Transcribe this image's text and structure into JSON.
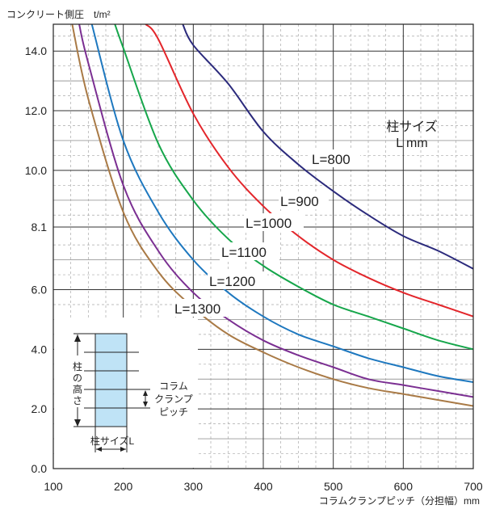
{
  "chart_data": {
    "type": "line",
    "ylabel": "コンクリート側圧　t/m²",
    "xlabel": "コラムクランプピッチ（分担幅）mm",
    "xlim": [
      100,
      700
    ],
    "ylim": [
      0,
      14.9
    ],
    "xticks": [
      100,
      200,
      300,
      400,
      500,
      600,
      700
    ],
    "xtick_labels": [
      "100",
      "200",
      "300",
      "400",
      "500",
      "600",
      "700"
    ],
    "yticks": [
      0,
      2,
      4,
      6,
      8.1,
      10,
      12,
      14
    ],
    "ytick_labels": [
      "0.0",
      "2.0",
      "4.0",
      "6.0",
      "8.1",
      "10.0",
      "12.0",
      "14.0"
    ],
    "grid": true,
    "legend_title": [
      "柱サイズ",
      "L mm"
    ],
    "series": [
      {
        "name": "L=800",
        "color": "#2b2a7c",
        "x": [
          285,
          300,
          350,
          400,
          450,
          500,
          550,
          600,
          650,
          700
        ],
        "y": [
          14.9,
          14.2,
          12.9,
          11.3,
          10.2,
          9.3,
          8.5,
          7.8,
          7.3,
          6.7
        ]
      },
      {
        "name": "L=900",
        "color": "#e3262b",
        "x": [
          232,
          250,
          300,
          350,
          400,
          450,
          500,
          550,
          600,
          650,
          700
        ],
        "y": [
          14.9,
          14.4,
          11.9,
          10.1,
          8.8,
          7.8,
          7.0,
          6.4,
          5.9,
          5.5,
          5.1
        ]
      },
      {
        "name": "L=1000",
        "color": "#16a64b",
        "x": [
          188,
          200,
          250,
          300,
          350,
          400,
          450,
          500,
          550,
          600,
          650,
          700
        ],
        "y": [
          14.9,
          14.1,
          10.9,
          9.0,
          7.7,
          6.8,
          6.1,
          5.5,
          5.1,
          4.7,
          4.3,
          4.0
        ]
      },
      {
        "name": "L=1100",
        "color": "#1e78bf",
        "x": [
          155,
          200,
          250,
          300,
          350,
          400,
          450,
          500,
          550,
          600,
          650,
          700
        ],
        "y": [
          14.9,
          11.0,
          8.6,
          7.0,
          5.9,
          5.1,
          4.5,
          4.1,
          3.7,
          3.4,
          3.1,
          2.9
        ]
      },
      {
        "name": "L=1200",
        "color": "#7b2f92",
        "x": [
          137,
          150,
          200,
          250,
          300,
          350,
          400,
          450,
          500,
          550,
          600,
          650,
          700
        ],
        "y": [
          14.9,
          13.6,
          9.5,
          7.3,
          5.9,
          5.0,
          4.3,
          3.8,
          3.4,
          3.0,
          2.8,
          2.6,
          2.4
        ]
      },
      {
        "name": "L=1300",
        "color": "#a97a46",
        "x": [
          127,
          150,
          200,
          250,
          300,
          350,
          400,
          450,
          500,
          550,
          600,
          650,
          700
        ],
        "y": [
          14.9,
          12.4,
          8.6,
          6.6,
          5.4,
          4.5,
          3.9,
          3.4,
          3.0,
          2.7,
          2.5,
          2.3,
          2.1
        ]
      }
    ],
    "inset": {
      "column_height_label": [
        "柱",
        "の",
        "高",
        "さ"
      ],
      "pitch_label": [
        "コラム",
        "クランプ",
        "ピッチ"
      ],
      "size_label": "柱サイズL"
    }
  }
}
